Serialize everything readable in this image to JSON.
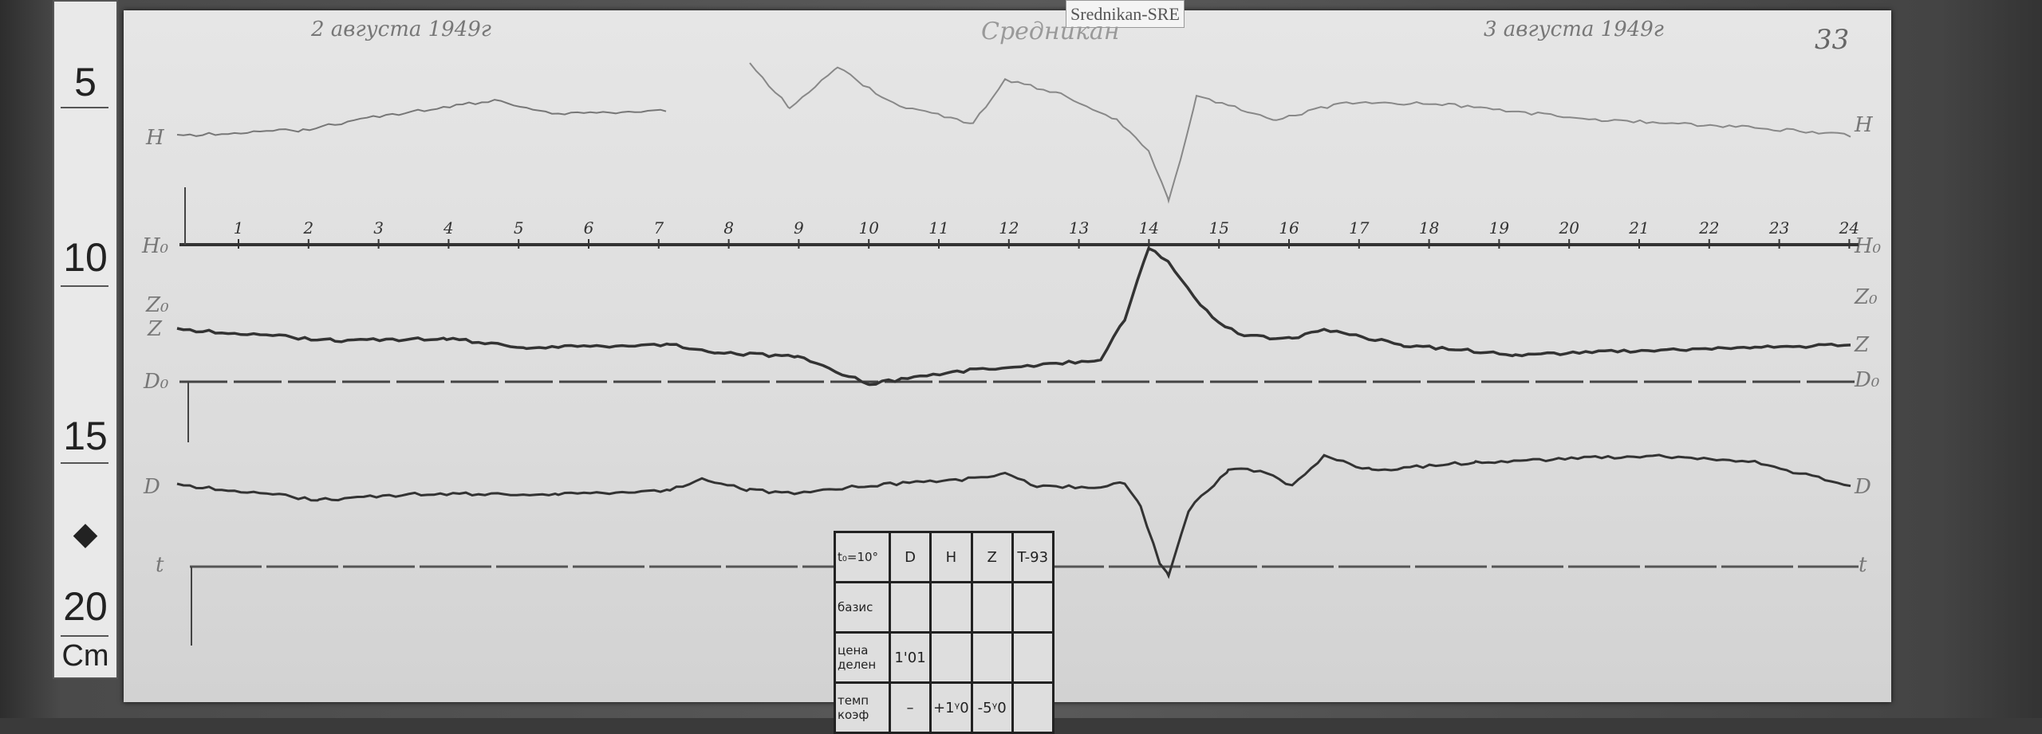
{
  "label_tag": "Srednikan-SRE",
  "header": {
    "date_left": "2 августа 1949г",
    "station": "Средникан",
    "date_right": "3 августа 1949г",
    "page_number": "33"
  },
  "ruler": {
    "marks": [
      "5",
      "10",
      "15",
      "20"
    ],
    "unit": "Cm"
  },
  "trace_labels": {
    "H": "H",
    "H0": "H₀",
    "Z0": "Z₀",
    "Z": "Z",
    "D0": "D₀",
    "D": "D",
    "t": "t"
  },
  "hours": [
    "1",
    "2",
    "3",
    "4",
    "5",
    "6",
    "7",
    "8",
    "9",
    "10",
    "11",
    "12",
    "13",
    "14",
    "15",
    "16",
    "17",
    "18",
    "19",
    "20",
    "21",
    "22",
    "23",
    "24"
  ],
  "table": {
    "header": [
      "t₀=10°",
      "D",
      "H",
      "Z",
      "T-93"
    ],
    "rows": [
      [
        "базис",
        "",
        "",
        "",
        ""
      ],
      [
        "цена делен",
        "1'01",
        "",
        "",
        ""
      ],
      [
        "темп коэф",
        "–",
        "+1ᵞ0",
        "-5ᵞ0",
        ""
      ]
    ]
  }
}
